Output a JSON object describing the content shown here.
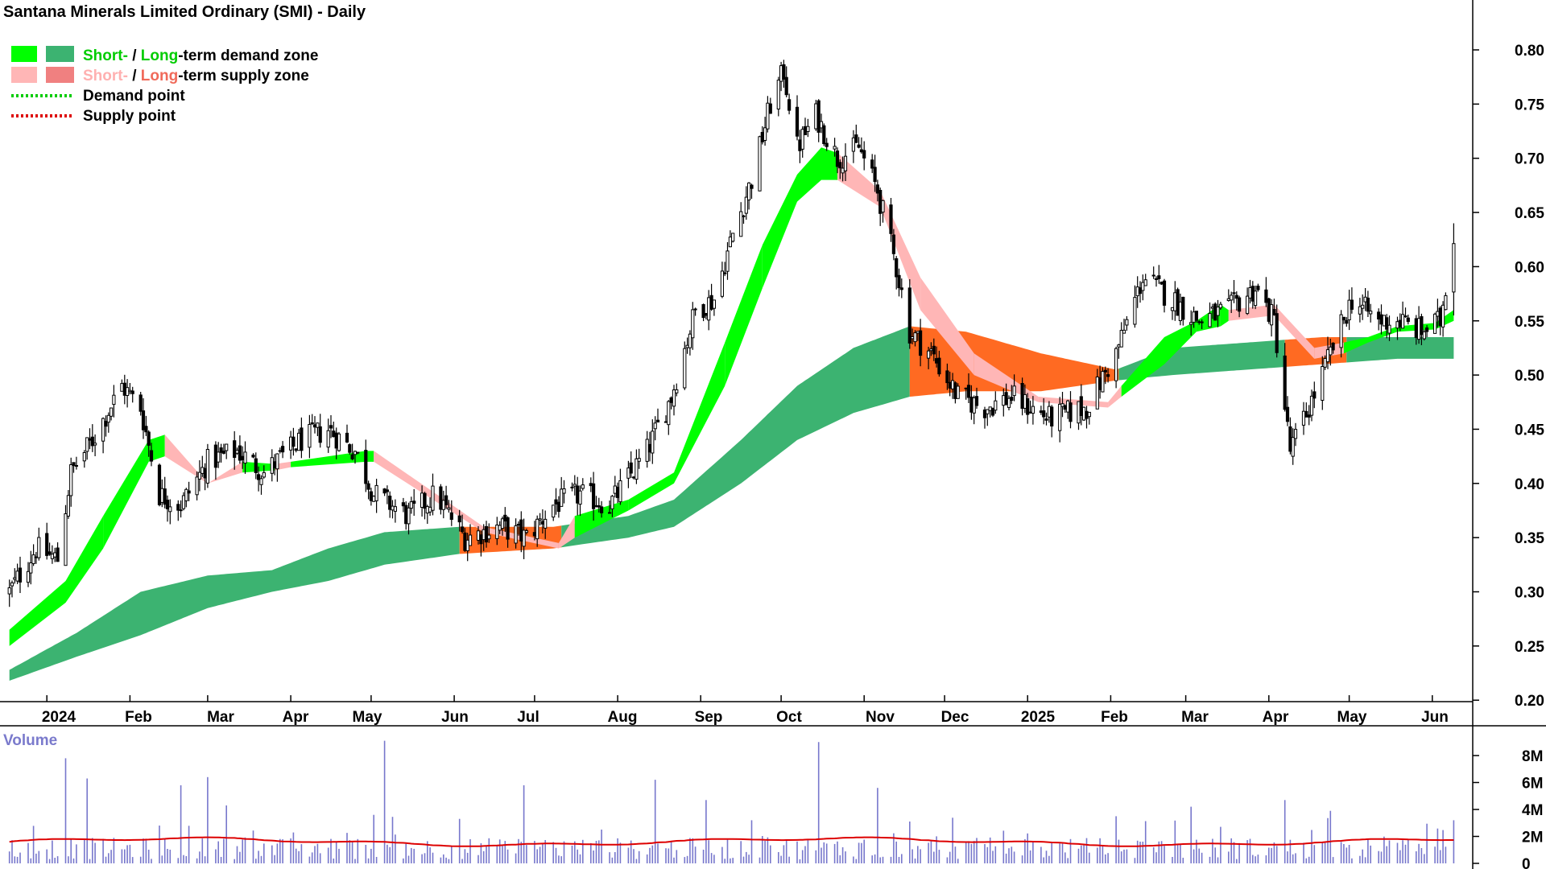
{
  "chart_data": {
    "type": "candlestick",
    "title": "Santana Minerals Limited Ordinary (SMI) - Daily",
    "legend": {
      "placement": "top-left",
      "demand_zone": {
        "short": "Short-",
        "sep": " / ",
        "long": "Long",
        "rest": "-term demand zone"
      },
      "supply_zone": {
        "short": "Short-",
        "sep": " / ",
        "long": "Long",
        "rest": "-term supply zone"
      },
      "demand_point": "Demand point",
      "supply_point": "Supply point"
    },
    "colors": {
      "short_demand": "#00ff00",
      "long_demand": "#3cb371",
      "short_supply": "#ffb6b6",
      "long_supply": "#ff6a22",
      "legend_long_supply": "#f08080",
      "demand_point": "#00cc00",
      "supply_point": "#dd0000",
      "volume_bar": "#7777cc",
      "volume_avg": "#dd0000",
      "candle": "#000000"
    },
    "x_labels": [
      "2024",
      "Feb",
      "Mar",
      "Apr",
      "May",
      "Jun",
      "Jul",
      "Aug",
      "Sep",
      "Oct",
      "Nov",
      "Dec",
      "2025",
      "Feb",
      "Mar",
      "Apr",
      "May",
      "Jun"
    ],
    "y_ticks": [
      "0.80",
      "0.75",
      "0.70",
      "0.65",
      "0.60",
      "0.55",
      "0.50",
      "0.45",
      "0.40",
      "0.35",
      "0.30",
      "0.25",
      "0.20"
    ],
    "ylim": [
      0.18,
      0.82
    ],
    "price_knots": [
      [
        "2023-12-18",
        0.3
      ],
      [
        "2023-12-28",
        0.34
      ],
      [
        "2024-01-05",
        0.33
      ],
      [
        "2024-01-10",
        0.41
      ],
      [
        "2024-01-18",
        0.44
      ],
      [
        "2024-01-29",
        0.49
      ],
      [
        "2024-02-05",
        0.47
      ],
      [
        "2024-02-12",
        0.39
      ],
      [
        "2024-02-20",
        0.38
      ],
      [
        "2024-03-01",
        0.42
      ],
      [
        "2024-03-12",
        0.43
      ],
      [
        "2024-03-22",
        0.41
      ],
      [
        "2024-04-05",
        0.44
      ],
      [
        "2024-04-15",
        0.45
      ],
      [
        "2024-04-25",
        0.43
      ],
      [
        "2024-05-02",
        0.39
      ],
      [
        "2024-05-15",
        0.37
      ],
      [
        "2024-05-25",
        0.39
      ],
      [
        "2024-06-05",
        0.35
      ],
      [
        "2024-06-18",
        0.36
      ],
      [
        "2024-06-28",
        0.35
      ],
      [
        "2024-07-08",
        0.38
      ],
      [
        "2024-07-18",
        0.39
      ],
      [
        "2024-07-29",
        0.38
      ],
      [
        "2024-08-12",
        0.43
      ],
      [
        "2024-08-21",
        0.48
      ],
      [
        "2024-08-30",
        0.56
      ],
      [
        "2024-09-06",
        0.57
      ],
      [
        "2024-09-13",
        0.63
      ],
      [
        "2024-09-20",
        0.68
      ],
      [
        "2024-09-27",
        0.75
      ],
      [
        "2024-10-02",
        0.78
      ],
      [
        "2024-10-07",
        0.71
      ],
      [
        "2024-10-14",
        0.74
      ],
      [
        "2024-10-22",
        0.7
      ],
      [
        "2024-10-30",
        0.71
      ],
      [
        "2024-11-06",
        0.67
      ],
      [
        "2024-11-13",
        0.6
      ],
      [
        "2024-11-18",
        0.54
      ],
      [
        "2024-11-26",
        0.52
      ],
      [
        "2024-12-06",
        0.48
      ],
      [
        "2024-12-16",
        0.47
      ],
      [
        "2024-12-26",
        0.48
      ],
      [
        "2025-01-09",
        0.46
      ],
      [
        "2025-01-23",
        0.47
      ],
      [
        "2025-02-03",
        0.52
      ],
      [
        "2025-02-13",
        0.59
      ],
      [
        "2025-02-24",
        0.57
      ],
      [
        "2025-03-06",
        0.55
      ],
      [
        "2025-03-17",
        0.56
      ],
      [
        "2025-03-27",
        0.58
      ],
      [
        "2025-04-03",
        0.55
      ],
      [
        "2025-04-09",
        0.43
      ],
      [
        "2025-04-16",
        0.47
      ],
      [
        "2025-04-24",
        0.52
      ],
      [
        "2025-05-02",
        0.57
      ],
      [
        "2025-05-12",
        0.55
      ],
      [
        "2025-05-20",
        0.55
      ],
      [
        "2025-05-28",
        0.54
      ],
      [
        "2025-06-04",
        0.55
      ],
      [
        "2025-06-09",
        0.63
      ]
    ],
    "short_zone_knots": [
      [
        "2023-12-18",
        0.265,
        0.25,
        "demand"
      ],
      [
        "2024-01-08",
        0.31,
        0.29,
        "demand"
      ],
      [
        "2024-01-22",
        0.37,
        0.34,
        "demand"
      ],
      [
        "2024-02-08",
        0.44,
        0.42,
        "demand"
      ],
      [
        "2024-02-14",
        0.445,
        0.425,
        "supply"
      ],
      [
        "2024-03-01",
        0.4,
        0.4,
        "supply"
      ],
      [
        "2024-03-14",
        0.42,
        0.41,
        "demand"
      ],
      [
        "2024-03-26",
        0.418,
        0.412,
        "supply"
      ],
      [
        "2024-04-01",
        0.42,
        0.415,
        "demand"
      ],
      [
        "2024-04-29",
        0.43,
        0.42,
        "demand"
      ],
      [
        "2024-05-02",
        0.43,
        0.42,
        "supply"
      ],
      [
        "2024-06-12",
        0.36,
        0.355,
        "supply"
      ],
      [
        "2024-07-10",
        0.345,
        0.34,
        "supply"
      ],
      [
        "2024-07-16",
        0.37,
        0.35,
        "demand"
      ],
      [
        "2024-08-05",
        0.385,
        0.375,
        "demand"
      ],
      [
        "2024-08-22",
        0.41,
        0.4,
        "demand"
      ],
      [
        "2024-09-10",
        0.53,
        0.49,
        "demand"
      ],
      [
        "2024-09-24",
        0.62,
        0.58,
        "demand"
      ],
      [
        "2024-10-07",
        0.685,
        0.66,
        "demand"
      ],
      [
        "2024-10-16",
        0.71,
        0.68,
        "demand"
      ],
      [
        "2024-10-22",
        0.705,
        0.68,
        "supply"
      ],
      [
        "2024-11-07",
        0.67,
        0.655,
        "supply"
      ],
      [
        "2024-11-22",
        0.59,
        0.56,
        "supply"
      ],
      [
        "2024-12-12",
        0.52,
        0.5,
        "supply"
      ],
      [
        "2025-01-05",
        0.48,
        0.475,
        "supply"
      ],
      [
        "2025-01-31",
        0.475,
        0.47,
        "supply"
      ],
      [
        "2025-02-05",
        0.49,
        0.48,
        "demand"
      ],
      [
        "2025-02-21",
        0.535,
        0.51,
        "demand"
      ],
      [
        "2025-03-05",
        0.55,
        0.54,
        "demand"
      ],
      [
        "2025-03-14",
        0.565,
        0.545,
        "demand"
      ],
      [
        "2025-03-17",
        0.56,
        0.55,
        "supply"
      ],
      [
        "2025-04-03",
        0.565,
        0.555,
        "supply"
      ],
      [
        "2025-04-18",
        0.525,
        0.515,
        "supply"
      ],
      [
        "2025-04-29",
        0.53,
        0.52,
        "demand"
      ],
      [
        "2025-05-08",
        0.535,
        0.53,
        "demand"
      ],
      [
        "2025-05-19",
        0.545,
        0.54,
        "demand"
      ],
      [
        "2025-06-02",
        0.548,
        0.542,
        "demand"
      ],
      [
        "2025-06-09",
        0.56,
        0.55,
        "demand"
      ]
    ],
    "long_zone_knots": [
      [
        "2023-12-18",
        0.228,
        0.218
      ],
      [
        "2024-01-12",
        0.262,
        0.24
      ],
      [
        "2024-02-05",
        0.3,
        0.26
      ],
      [
        "2024-03-01",
        0.315,
        0.285
      ],
      [
        "2024-03-25",
        0.32,
        0.3
      ],
      [
        "2024-04-15",
        0.34,
        0.31
      ],
      [
        "2024-05-06",
        0.355,
        0.325
      ],
      [
        "2024-06-03",
        0.36,
        0.335
      ],
      [
        "2024-07-08",
        0.36,
        0.34
      ],
      [
        "2024-08-05",
        0.37,
        0.35
      ],
      [
        "2024-08-22",
        0.385,
        0.36
      ],
      [
        "2024-09-16",
        0.44,
        0.4
      ],
      [
        "2024-10-07",
        0.49,
        0.44
      ],
      [
        "2024-10-28",
        0.525,
        0.465
      ],
      [
        "2024-11-18",
        0.545,
        0.48
      ],
      [
        "2024-12-09",
        0.54,
        0.485
      ],
      [
        "2025-01-06",
        0.52,
        0.485
      ],
      [
        "2025-02-03",
        0.505,
        0.495
      ],
      [
        "2025-02-24",
        0.525,
        0.5
      ],
      [
        "2025-03-24",
        0.53,
        0.505
      ],
      [
        "2025-04-21",
        0.535,
        0.51
      ],
      [
        "2025-05-19",
        0.535,
        0.515
      ],
      [
        "2025-06-09",
        0.535,
        0.515
      ]
    ],
    "long_zone_supply_ranges": [
      [
        "2024-06-03",
        "2024-07-10"
      ],
      [
        "2024-11-18",
        "2025-02-03"
      ],
      [
        "2025-04-07",
        "2025-04-29"
      ]
    ],
    "volume": {
      "title": "Volume",
      "y_ticks": [
        "8M",
        "6M",
        "4M",
        "2M",
        "0"
      ],
      "ylim": [
        0,
        9
      ],
      "average_million": 1.6,
      "spikes": [
        [
          "2024-01-08",
          7.8
        ],
        [
          "2024-01-16",
          6.3
        ],
        [
          "2024-02-20",
          5.8
        ],
        [
          "2024-03-01",
          6.4
        ],
        [
          "2024-03-08",
          4.3
        ],
        [
          "2024-05-02",
          3.6
        ],
        [
          "2024-05-06",
          9.1
        ],
        [
          "2024-06-03",
          3.3
        ],
        [
          "2024-06-27",
          5.8
        ],
        [
          "2024-08-15",
          6.2
        ],
        [
          "2024-09-03",
          4.7
        ],
        [
          "2024-09-20",
          3.2
        ],
        [
          "2024-10-15",
          9.0
        ],
        [
          "2024-11-06",
          5.6
        ],
        [
          "2025-02-03",
          3.5
        ],
        [
          "2025-03-03",
          4.2
        ],
        [
          "2025-04-07",
          4.7
        ],
        [
          "2025-04-24",
          3.9
        ],
        [
          "2025-06-09",
          3.2
        ]
      ]
    }
  }
}
